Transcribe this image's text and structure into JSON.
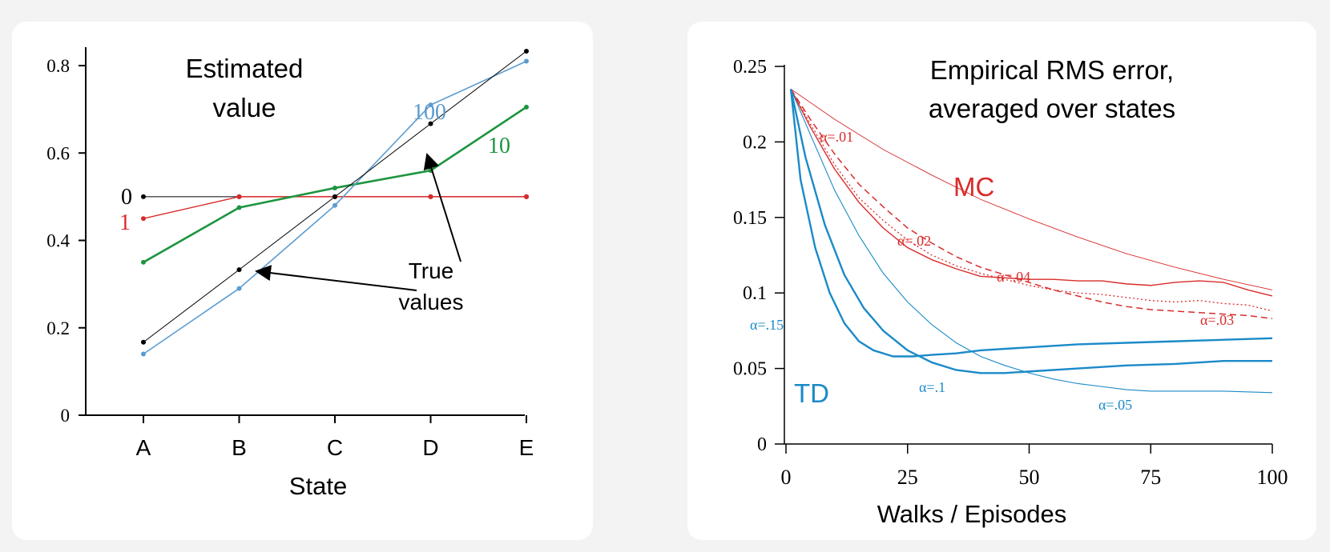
{
  "colors": {
    "true_values": "#000000",
    "ep0": "#000000",
    "ep1": "#d92b2b",
    "ep10": "#1e9540",
    "ep100": "#5b9bd0",
    "mc": "#d92b2b",
    "td": "#1a8ac8"
  },
  "chart_data": [
    {
      "type": "line",
      "title": "Estimated value",
      "title_lines": [
        "Estimated",
        "value"
      ],
      "xlabel": "State",
      "ylabel": "",
      "categories": [
        "A",
        "B",
        "C",
        "D",
        "E"
      ],
      "ylim": [
        0,
        0.85
      ],
      "yticks": [
        0,
        0.2,
        0.4,
        0.6,
        0.8
      ],
      "ytick_labels": [
        "0",
        "0.2",
        "0.4",
        "0.6",
        "0.8"
      ],
      "grid": false,
      "series": [
        {
          "name": "0",
          "color": "#000000",
          "values": [
            0.5,
            0.5,
            0.5,
            0.5,
            0.5
          ]
        },
        {
          "name": "1",
          "color": "#d92b2b",
          "values": [
            0.45,
            0.5,
            0.5,
            0.5,
            0.5
          ]
        },
        {
          "name": "10",
          "color": "#1e9540",
          "values": [
            0.35,
            0.475,
            0.52,
            0.56,
            0.705
          ]
        },
        {
          "name": "100",
          "color": "#5b9bd0",
          "values": [
            0.14,
            0.29,
            0.48,
            0.71,
            0.81
          ]
        },
        {
          "name": "True values",
          "color": "#000000",
          "values": [
            0.167,
            0.333,
            0.5,
            0.667,
            0.833
          ]
        }
      ],
      "annotation": {
        "text": "True values",
        "lines": [
          "True",
          "values"
        ]
      }
    },
    {
      "type": "line",
      "title": "Empirical RMS error, averaged over states",
      "title_lines": [
        "Empirical RMS error,",
        "averaged over states"
      ],
      "xlabel": "Walks / Episodes",
      "ylabel": "",
      "xlim": [
        0,
        100
      ],
      "ylim": [
        0,
        0.25
      ],
      "xticks": [
        0,
        25,
        50,
        75,
        100
      ],
      "xtick_labels": [
        "0",
        "25",
        "50",
        "75",
        "100"
      ],
      "yticks": [
        0,
        0.05,
        0.1,
        0.15,
        0.2,
        0.25
      ],
      "ytick_labels": [
        "0",
        "0.05",
        "0.1",
        "0.15",
        "0.2",
        "0.25"
      ],
      "grid": false,
      "group_labels": {
        "mc": "MC",
        "td": "TD"
      },
      "series": [
        {
          "name": "α=.01",
          "group": "MC",
          "color": "#d92b2b",
          "width": 0.9,
          "dash": "",
          "x": [
            1,
            10,
            20,
            30,
            40,
            50,
            60,
            70,
            80,
            90,
            100
          ],
          "values": [
            0.235,
            0.215,
            0.195,
            0.178,
            0.162,
            0.149,
            0.137,
            0.126,
            0.117,
            0.109,
            0.102
          ]
        },
        {
          "name": "α=.02",
          "group": "MC",
          "color": "#d92b2b",
          "width": 1.5,
          "dash": "8,5",
          "x": [
            1,
            5,
            10,
            15,
            20,
            25,
            30,
            35,
            40,
            45,
            50,
            55,
            60,
            65,
            70,
            75,
            80,
            85,
            90,
            95,
            100
          ],
          "values": [
            0.235,
            0.215,
            0.192,
            0.172,
            0.157,
            0.143,
            0.133,
            0.124,
            0.117,
            0.112,
            0.107,
            0.102,
            0.098,
            0.094,
            0.091,
            0.089,
            0.088,
            0.087,
            0.086,
            0.085,
            0.083
          ]
        },
        {
          "name": "α=.03",
          "group": "MC",
          "color": "#d92b2b",
          "width": 1.3,
          "dash": "2,3",
          "x": [
            1,
            5,
            10,
            15,
            20,
            25,
            30,
            35,
            40,
            45,
            50,
            55,
            60,
            65,
            70,
            75,
            80,
            85,
            90,
            95,
            100
          ],
          "values": [
            0.235,
            0.212,
            0.185,
            0.163,
            0.148,
            0.135,
            0.125,
            0.118,
            0.113,
            0.109,
            0.105,
            0.102,
            0.1,
            0.099,
            0.097,
            0.095,
            0.094,
            0.095,
            0.093,
            0.092,
            0.088
          ]
        },
        {
          "name": "α=.04",
          "group": "MC",
          "color": "#d92b2b",
          "width": 1.4,
          "dash": "",
          "x": [
            1,
            5,
            10,
            15,
            20,
            25,
            30,
            35,
            40,
            45,
            50,
            55,
            60,
            65,
            70,
            75,
            80,
            85,
            90,
            95,
            100
          ],
          "values": [
            0.235,
            0.21,
            0.182,
            0.16,
            0.143,
            0.13,
            0.122,
            0.116,
            0.111,
            0.11,
            0.109,
            0.109,
            0.108,
            0.108,
            0.106,
            0.105,
            0.107,
            0.108,
            0.107,
            0.102,
            0.098
          ]
        },
        {
          "name": "α=.05",
          "group": "TD",
          "color": "#1a8ac8",
          "width": 1.1,
          "dash": "",
          "x": [
            1,
            5,
            10,
            15,
            20,
            25,
            30,
            35,
            40,
            45,
            50,
            55,
            60,
            65,
            70,
            75,
            80,
            90,
            100
          ],
          "values": [
            0.235,
            0.205,
            0.168,
            0.138,
            0.113,
            0.094,
            0.079,
            0.067,
            0.058,
            0.052,
            0.047,
            0.043,
            0.04,
            0.038,
            0.036,
            0.035,
            0.035,
            0.035,
            0.034
          ]
        },
        {
          "name": "α=.1",
          "group": "TD",
          "color": "#1a8ac8",
          "width": 2.4,
          "dash": "",
          "x": [
            1,
            4,
            8,
            12,
            16,
            20,
            25,
            30,
            35,
            40,
            45,
            50,
            60,
            70,
            80,
            90,
            100
          ],
          "values": [
            0.235,
            0.19,
            0.145,
            0.112,
            0.09,
            0.075,
            0.062,
            0.054,
            0.049,
            0.047,
            0.047,
            0.048,
            0.05,
            0.052,
            0.053,
            0.055,
            0.055
          ]
        },
        {
          "name": "α=.15",
          "group": "TD",
          "color": "#1a8ac8",
          "width": 2.4,
          "dash": "",
          "x": [
            1,
            3,
            6,
            9,
            12,
            15,
            18,
            22,
            26,
            30,
            35,
            40,
            50,
            60,
            70,
            80,
            90,
            100
          ],
          "values": [
            0.235,
            0.175,
            0.13,
            0.1,
            0.08,
            0.068,
            0.062,
            0.058,
            0.058,
            0.059,
            0.06,
            0.062,
            0.064,
            0.066,
            0.067,
            0.068,
            0.069,
            0.07
          ]
        }
      ]
    }
  ]
}
